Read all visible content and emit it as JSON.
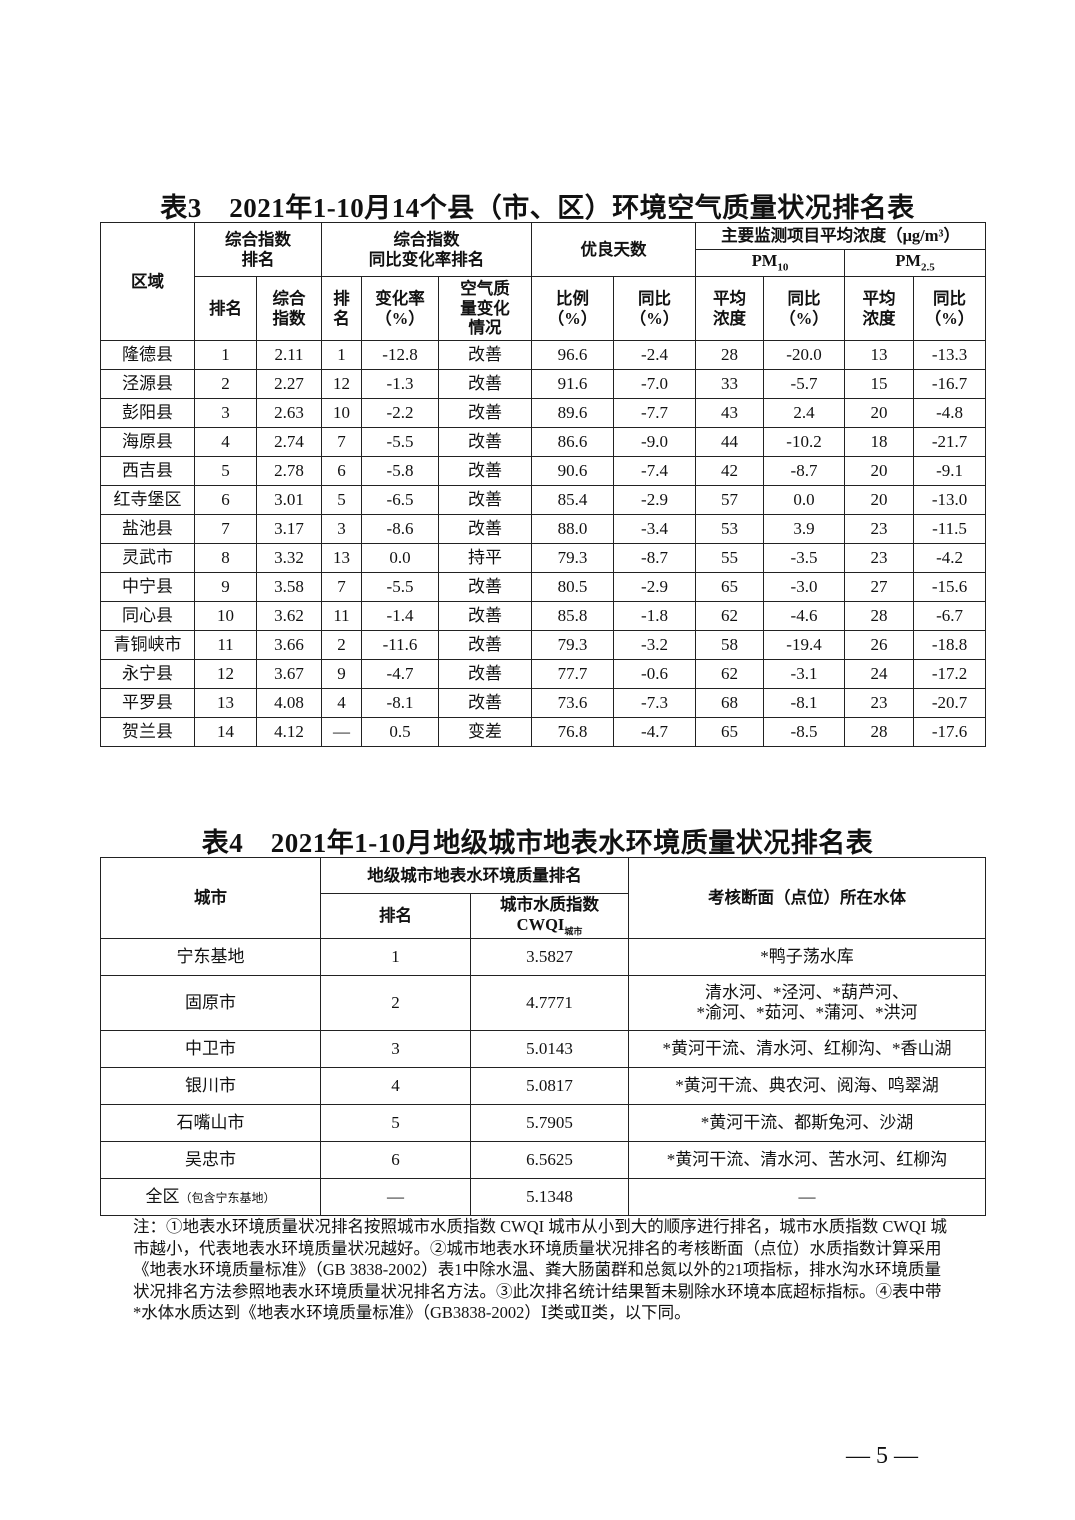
{
  "table3": {
    "title": "表3　2021年1-10月14个县（市、区）环境空气质量状况排名表",
    "headers": {
      "region": "区域",
      "composite_rank_group": "综合指数\n排名",
      "change_rank_group": "综合指数\n同比变化率排名",
      "good_days_group": "优良天数",
      "pollutant_group": "主要监测项目平均浓度（μg/m³）",
      "pm10": "PM10",
      "pm25": "PM2.5",
      "rank": "排名",
      "index": "综合\n指数",
      "change_rank": "排\n名",
      "change_rate": "变化率\n（%）",
      "air_change": "空气质\n量变化\n情况",
      "ratio": "比例\n（%）",
      "yoy": "同比\n（%）",
      "avg": "平均\n浓度",
      "yoy2": "同比\n（%）",
      "avg2": "平均\n浓度",
      "yoy3": "同比\n（%）"
    },
    "rows": [
      [
        "隆德县",
        "1",
        "2.11",
        "1",
        "-12.8",
        "改善",
        "96.6",
        "-2.4",
        "28",
        "-20.0",
        "13",
        "-13.3"
      ],
      [
        "泾源县",
        "2",
        "2.27",
        "12",
        "-1.3",
        "改善",
        "91.6",
        "-7.0",
        "33",
        "-5.7",
        "15",
        "-16.7"
      ],
      [
        "彭阳县",
        "3",
        "2.63",
        "10",
        "-2.2",
        "改善",
        "89.6",
        "-7.7",
        "43",
        "2.4",
        "20",
        "-4.8"
      ],
      [
        "海原县",
        "4",
        "2.74",
        "7",
        "-5.5",
        "改善",
        "86.6",
        "-9.0",
        "44",
        "-10.2",
        "18",
        "-21.7"
      ],
      [
        "西吉县",
        "5",
        "2.78",
        "6",
        "-5.8",
        "改善",
        "90.6",
        "-7.4",
        "42",
        "-8.7",
        "20",
        "-9.1"
      ],
      [
        "红寺堡区",
        "6",
        "3.01",
        "5",
        "-6.5",
        "改善",
        "85.4",
        "-2.9",
        "57",
        "0.0",
        "20",
        "-13.0"
      ],
      [
        "盐池县",
        "7",
        "3.17",
        "3",
        "-8.6",
        "改善",
        "88.0",
        "-3.4",
        "53",
        "3.9",
        "23",
        "-11.5"
      ],
      [
        "灵武市",
        "8",
        "3.32",
        "13",
        "0.0",
        "持平",
        "79.3",
        "-8.7",
        "55",
        "-3.5",
        "23",
        "-4.2"
      ],
      [
        "中宁县",
        "9",
        "3.58",
        "7",
        "-5.5",
        "改善",
        "80.5",
        "-2.9",
        "65",
        "-3.0",
        "27",
        "-15.6"
      ],
      [
        "同心县",
        "10",
        "3.62",
        "11",
        "-1.4",
        "改善",
        "85.8",
        "-1.8",
        "62",
        "-4.6",
        "28",
        "-6.7"
      ],
      [
        "青铜峡市",
        "11",
        "3.66",
        "2",
        "-11.6",
        "改善",
        "79.3",
        "-3.2",
        "58",
        "-19.4",
        "26",
        "-18.8"
      ],
      [
        "永宁县",
        "12",
        "3.67",
        "9",
        "-4.7",
        "改善",
        "77.7",
        "-0.6",
        "62",
        "-3.1",
        "24",
        "-17.2"
      ],
      [
        "平罗县",
        "13",
        "4.08",
        "4",
        "-8.1",
        "改善",
        "73.6",
        "-7.3",
        "68",
        "-8.1",
        "23",
        "-20.7"
      ],
      [
        "贺兰县",
        "14",
        "4.12",
        "—",
        "0.5",
        "变差",
        "76.8",
        "-4.7",
        "65",
        "-8.5",
        "28",
        "-17.6"
      ]
    ]
  },
  "table4": {
    "title": "表4　2021年1-10月地级城市地表水环境质量状况排名表",
    "headers": {
      "city": "城市",
      "rank_group": "地级城市地表水环境质量排名",
      "rank": "排名",
      "cwqi": "城市水质指数\nCWQI",
      "cwqi_sub": "城市",
      "water_bodies": "考核断面（点位）所在水体"
    },
    "rows": [
      [
        "宁东基地",
        "1",
        "3.5827",
        "*鸭子荡水库"
      ],
      [
        "固原市",
        "2",
        "4.7771",
        "清水河、*泾河、*葫芦河、\n*渝河、*茹河、*蒲河、*洪河"
      ],
      [
        "中卫市",
        "3",
        "5.0143",
        "*黄河干流、清水河、红柳沟、*香山湖"
      ],
      [
        "银川市",
        "4",
        "5.0817",
        "*黄河干流、典农河、阅海、鸣翠湖"
      ],
      [
        "石嘴山市",
        "5",
        "5.7905",
        "*黄河干流、都斯兔河、沙湖"
      ],
      [
        "吴忠市",
        "6",
        "6.5625",
        "*黄河干流、清水河、苦水河、红柳沟"
      ]
    ],
    "total_row": {
      "city": "全区",
      "city_note": "（包含宁东基地）",
      "rank": "—",
      "cwqi": "5.1348",
      "water_bodies": "—"
    }
  },
  "notes": "注：①地表水环境质量状况排名按照城市水质指数 CWQI 城市从小到大的顺序进行排名，城市水质指数 CWQI 城市越小，代表地表水环境质量状况越好。②城市地表水环境质量状况排名的考核断面（点位）水质指数计算采用《地表水环境质量标准》（GB 3838-2002）表1中除水温、粪大肠菌群和总氮以外的21项指标，排水沟水环境质量状况排名方法参照地表水环境质量状况排名方法。③此次排名统计结果暂未剔除水环境本底超标指标。④表中带*水体水质达到《地表水环境质量标准》（GB3838-2002）Ⅰ类或Ⅱ类，以下同。",
  "page_number": "— 5 —"
}
